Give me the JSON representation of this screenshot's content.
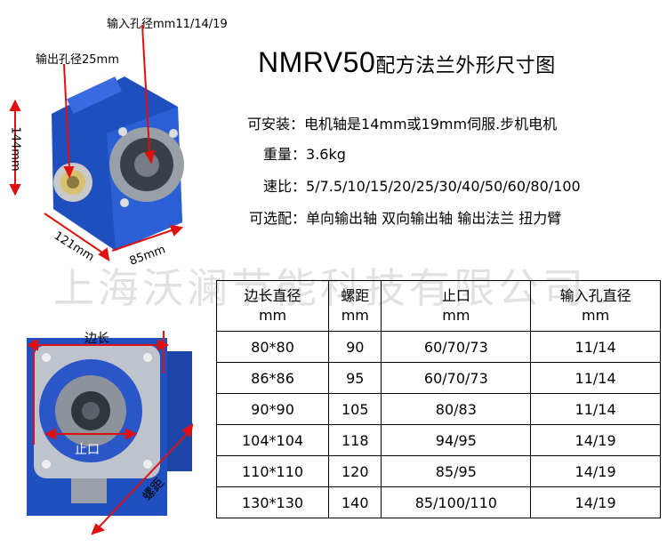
{
  "title": {
    "model": "NMRV50",
    "subtitle": "配方法兰外形尺寸图"
  },
  "specs": [
    {
      "label": "可安装：",
      "value": "电机轴是14mm或19mm伺服.步机电机"
    },
    {
      "label": "重量：",
      "value": "3.6kg"
    },
    {
      "label": "速比：",
      "value": "5/7.5/10/15/20/25/30/40/50/60/80/100"
    },
    {
      "label": "可选配：",
      "value": "单向输出轴 双向输出轴 输出法兰 扭力臂"
    }
  ],
  "watermark": "上海沃澜节能科技有限公司",
  "annotations": {
    "input_bore": "输入孔径mm11/14/19",
    "output_bore": "输出孔径25mm",
    "height": "144mm",
    "width1": "121mm",
    "width2": "85mm",
    "side_length": "边长",
    "spigot": "止口",
    "bolt_distance": "螺距"
  },
  "table": {
    "headers": [
      {
        "line1": "边长直径",
        "line2": "mm"
      },
      {
        "line1": "螺距",
        "line2": "mm"
      },
      {
        "line1": "止口",
        "line2": "mm"
      },
      {
        "line1": "输入孔直径",
        "line2": "mm"
      }
    ],
    "rows": [
      [
        "80*80",
        "90",
        "60/70/73",
        "11/14"
      ],
      [
        "86*86",
        "95",
        "60/70/73",
        "11/14"
      ],
      [
        "90*90",
        "105",
        "80/83",
        "11/14"
      ],
      [
        "104*104",
        "118",
        "94/95",
        "14/19"
      ],
      [
        "110*110",
        "120",
        "85/95",
        "14/19"
      ],
      [
        "130*130",
        "140",
        "85/100/110",
        "14/19"
      ]
    ]
  },
  "colors": {
    "body_blue": "#1f4fbf",
    "arrow_red": "#e01010"
  }
}
